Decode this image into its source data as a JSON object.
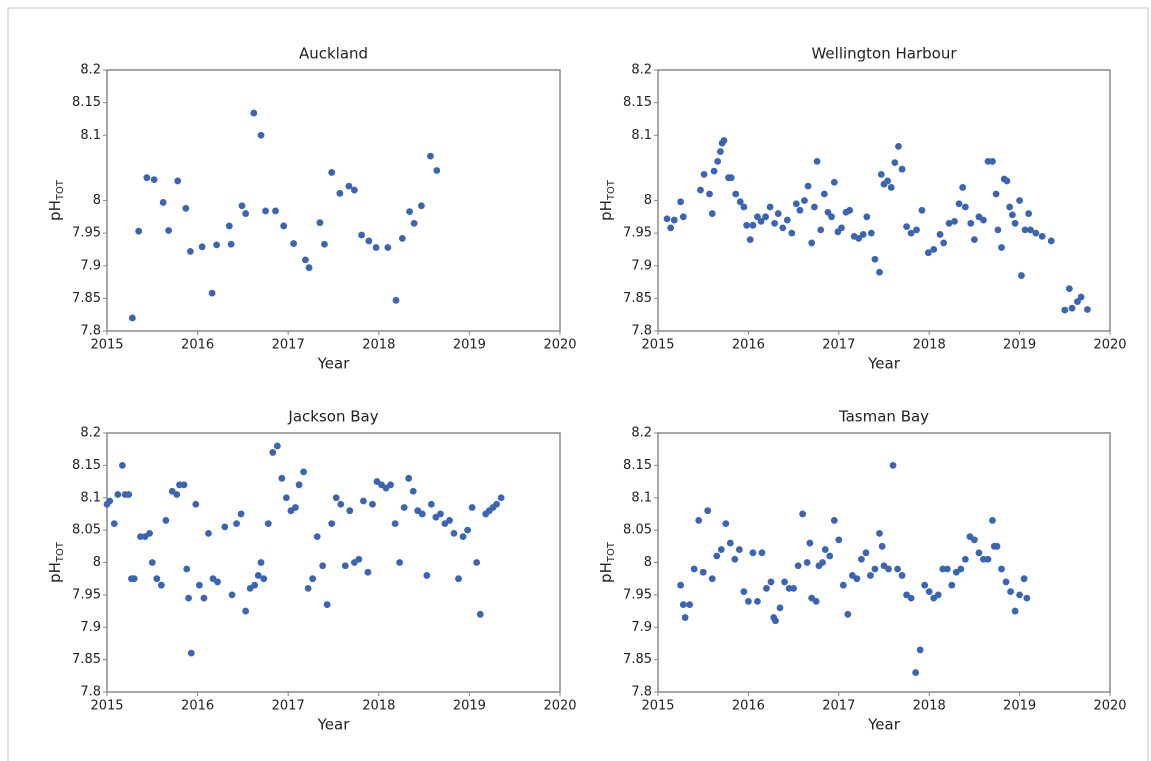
{
  "chart_data": [
    {
      "type": "scatter",
      "title": "Auckland",
      "x_label": "Year",
      "y_label": "pH",
      "y_label_sub": "TOT",
      "color": "#3a64b4",
      "xlim": [
        2015,
        2020
      ],
      "ylim": [
        7.8,
        8.2
      ],
      "xticks": [
        2015,
        2016,
        2017,
        2018,
        2019,
        2020
      ],
      "yticks": [
        8.2,
        8.15,
        8.1,
        8,
        7.95,
        7.9,
        7.85,
        7.8
      ],
      "x": [
        2015.28,
        2015.35,
        2015.44,
        2015.52,
        2015.62,
        2015.68,
        2015.78,
        2015.87,
        2015.92,
        2016.05,
        2016.16,
        2016.21,
        2016.35,
        2016.37,
        2016.49,
        2016.53,
        2016.62,
        2016.7,
        2016.75,
        2016.86,
        2016.95,
        2017.06,
        2017.19,
        2017.23,
        2017.35,
        2017.4,
        2017.48,
        2017.57,
        2017.67,
        2017.73,
        2017.81,
        2017.89,
        2017.97,
        2018.1,
        2018.19,
        2018.26,
        2018.34,
        2018.39,
        2018.47,
        2018.57,
        2018.64
      ],
      "values": [
        7.82,
        7.953,
        8.035,
        8.032,
        7.997,
        7.954,
        8.03,
        7.988,
        7.922,
        7.929,
        7.858,
        7.932,
        7.961,
        7.933,
        7.992,
        7.98,
        8.134,
        8.1,
        7.984,
        7.984,
        7.961,
        7.934,
        7.909,
        7.897,
        7.966,
        7.933,
        8.043,
        8.011,
        8.022,
        8.016,
        7.947,
        7.938,
        7.928,
        7.928,
        7.847,
        7.942,
        7.983,
        7.965,
        7.992,
        8.068,
        8.046
      ]
    },
    {
      "type": "scatter",
      "title": "Wellington Harbour",
      "x_label": "Year",
      "y_label": "pH",
      "y_label_sub": "TOT",
      "color": "#3a64b4",
      "xlim": [
        2015,
        2020
      ],
      "ylim": [
        7.8,
        8.2
      ],
      "xticks": [
        2015,
        2016,
        2017,
        2018,
        2019,
        2020
      ],
      "yticks": [
        8.2,
        8.15,
        8.1,
        8,
        7.95,
        7.9,
        7.85,
        7.8
      ],
      "x": [
        2015.1,
        2015.14,
        2015.18,
        2015.25,
        2015.28,
        2015.47,
        2015.51,
        2015.57,
        2015.6,
        2015.62,
        2015.66,
        2015.69,
        2015.71,
        2015.73,
        2015.78,
        2015.81,
        2015.86,
        2015.91,
        2015.95,
        2015.98,
        2016.02,
        2016.05,
        2016.1,
        2016.14,
        2016.19,
        2016.24,
        2016.29,
        2016.33,
        2016.38,
        2016.43,
        2016.48,
        2016.53,
        2016.57,
        2016.62,
        2016.66,
        2016.7,
        2016.73,
        2016.76,
        2016.8,
        2016.84,
        2016.88,
        2016.92,
        2016.95,
        2016.99,
        2017.03,
        2017.08,
        2017.12,
        2017.17,
        2017.22,
        2017.27,
        2017.31,
        2017.36,
        2017.4,
        2017.45,
        2017.47,
        2017.5,
        2017.54,
        2017.58,
        2017.62,
        2017.66,
        2017.7,
        2017.75,
        2017.8,
        2017.86,
        2017.92,
        2017.99,
        2018.05,
        2018.12,
        2018.16,
        2018.22,
        2018.28,
        2018.33,
        2018.37,
        2018.4,
        2018.46,
        2018.5,
        2018.55,
        2018.6,
        2018.65,
        2018.7,
        2018.74,
        2018.76,
        2018.8,
        2018.83,
        2018.86,
        2018.89,
        2018.92,
        2018.95,
        2019.0,
        2019.02,
        2019.06,
        2019.1,
        2019.12,
        2019.18,
        2019.25,
        2019.35,
        2019.5,
        2019.55,
        2019.58,
        2019.64,
        2019.68,
        2019.75
      ],
      "values": [
        7.972,
        7.958,
        7.97,
        7.998,
        7.975,
        8.016,
        8.04,
        8.01,
        7.98,
        8.045,
        8.06,
        8.075,
        8.088,
        8.092,
        8.035,
        8.035,
        8.01,
        7.998,
        7.99,
        7.962,
        7.94,
        7.962,
        7.975,
        7.968,
        7.975,
        7.99,
        7.965,
        7.98,
        7.958,
        7.97,
        7.95,
        7.995,
        7.985,
        8.0,
        8.022,
        7.935,
        7.99,
        8.06,
        7.955,
        8.01,
        7.982,
        7.975,
        8.028,
        7.952,
        7.958,
        7.982,
        7.985,
        7.945,
        7.942,
        7.948,
        7.975,
        7.95,
        7.91,
        7.89,
        8.04,
        8.025,
        8.03,
        8.02,
        8.058,
        8.083,
        8.048,
        7.96,
        7.95,
        7.955,
        7.985,
        7.92,
        7.925,
        7.948,
        7.935,
        7.965,
        7.968,
        7.995,
        8.02,
        7.99,
        7.965,
        7.94,
        7.975,
        7.97,
        8.06,
        8.06,
        8.01,
        7.955,
        7.928,
        8.033,
        8.03,
        7.99,
        7.978,
        7.965,
        8.0,
        7.885,
        7.955,
        7.98,
        7.955,
        7.95,
        7.945,
        7.938,
        7.832,
        7.865,
        7.835,
        7.845,
        7.852,
        7.833
      ]
    },
    {
      "type": "scatter",
      "title": "Jackson Bay",
      "x_label": "Year",
      "y_label": "pH",
      "y_label_sub": "TOT",
      "color": "#3a64b4",
      "xlim": [
        2015,
        2020
      ],
      "ylim": [
        7.8,
        8.2
      ],
      "xticks": [
        2015,
        2016,
        2017,
        2018,
        2019,
        2020
      ],
      "yticks": [
        8.2,
        8.15,
        8.1,
        8.05,
        8,
        7.95,
        7.9,
        7.85,
        7.8
      ],
      "x": [
        2015.0,
        2015.03,
        2015.08,
        2015.12,
        2015.17,
        2015.2,
        2015.24,
        2015.27,
        2015.3,
        2015.37,
        2015.42,
        2015.47,
        2015.5,
        2015.55,
        2015.6,
        2015.65,
        2015.72,
        2015.77,
        2015.8,
        2015.85,
        2015.88,
        2015.9,
        2015.93,
        2015.98,
        2016.02,
        2016.07,
        2016.12,
        2016.17,
        2016.22,
        2016.3,
        2016.38,
        2016.43,
        2016.48,
        2016.53,
        2016.58,
        2016.63,
        2016.67,
        2016.7,
        2016.73,
        2016.78,
        2016.83,
        2016.88,
        2016.93,
        2016.98,
        2017.03,
        2017.08,
        2017.12,
        2017.17,
        2017.22,
        2017.27,
        2017.32,
        2017.38,
        2017.43,
        2017.48,
        2017.53,
        2017.58,
        2017.63,
        2017.68,
        2017.73,
        2017.78,
        2017.83,
        2017.88,
        2017.93,
        2017.98,
        2018.03,
        2018.08,
        2018.13,
        2018.18,
        2018.23,
        2018.28,
        2018.33,
        2018.38,
        2018.43,
        2018.48,
        2018.53,
        2018.58,
        2018.63,
        2018.68,
        2018.73,
        2018.78,
        2018.83,
        2018.88,
        2018.93,
        2018.98,
        2019.03,
        2019.08,
        2019.12,
        2019.18,
        2019.22,
        2019.26,
        2019.3,
        2019.35
      ],
      "values": [
        8.09,
        8.095,
        8.06,
        8.105,
        8.15,
        8.105,
        8.105,
        7.975,
        7.975,
        8.04,
        8.04,
        8.045,
        8.0,
        7.975,
        7.965,
        8.065,
        8.11,
        8.105,
        8.12,
        8.12,
        7.99,
        7.945,
        7.86,
        8.09,
        7.965,
        7.945,
        8.045,
        7.975,
        7.97,
        8.055,
        7.95,
        8.06,
        8.075,
        7.925,
        7.96,
        7.965,
        7.98,
        8.0,
        7.975,
        8.06,
        8.17,
        8.18,
        8.13,
        8.1,
        8.08,
        8.085,
        8.12,
        8.14,
        7.96,
        7.975,
        8.04,
        7.995,
        7.935,
        8.06,
        8.1,
        8.09,
        7.995,
        8.08,
        8.0,
        8.005,
        8.095,
        7.985,
        8.09,
        8.125,
        8.12,
        8.115,
        8.12,
        8.06,
        8.0,
        8.085,
        8.13,
        8.11,
        8.08,
        8.075,
        7.98,
        8.09,
        8.07,
        8.075,
        8.06,
        8.065,
        8.045,
        7.975,
        8.04,
        8.05,
        8.085,
        8.0,
        7.92,
        8.075,
        8.08,
        8.085,
        8.09,
        8.1
      ]
    },
    {
      "type": "scatter",
      "title": "Tasman Bay",
      "x_label": "Year",
      "y_label": "pH",
      "y_label_sub": "TOT",
      "color": "#3a64b4",
      "xlim": [
        2015,
        2020
      ],
      "ylim": [
        7.8,
        8.2
      ],
      "xticks": [
        2015,
        2016,
        2017,
        2018,
        2019,
        2020
      ],
      "yticks": [
        8.2,
        8.15,
        8.1,
        8.05,
        8,
        7.95,
        7.9,
        7.85,
        7.8
      ],
      "x": [
        2015.25,
        2015.28,
        2015.3,
        2015.35,
        2015.4,
        2015.45,
        2015.5,
        2015.55,
        2015.6,
        2015.65,
        2015.7,
        2015.75,
        2015.8,
        2015.85,
        2015.9,
        2015.95,
        2016.0,
        2016.05,
        2016.1,
        2016.15,
        2016.2,
        2016.25,
        2016.28,
        2016.3,
        2016.35,
        2016.4,
        2016.45,
        2016.5,
        2016.55,
        2016.6,
        2016.65,
        2016.68,
        2016.7,
        2016.75,
        2016.78,
        2016.82,
        2016.85,
        2016.9,
        2016.95,
        2017.0,
        2017.05,
        2017.1,
        2017.15,
        2017.2,
        2017.25,
        2017.3,
        2017.35,
        2017.4,
        2017.45,
        2017.48,
        2017.5,
        2017.55,
        2017.6,
        2017.65,
        2017.7,
        2017.75,
        2017.8,
        2017.85,
        2017.9,
        2017.95,
        2018.0,
        2018.05,
        2018.1,
        2018.15,
        2018.2,
        2018.25,
        2018.3,
        2018.35,
        2018.4,
        2018.45,
        2018.5,
        2018.55,
        2018.6,
        2018.65,
        2018.7,
        2018.72,
        2018.75,
        2018.8,
        2018.85,
        2018.9,
        2018.95,
        2019.0,
        2019.05,
        2019.08
      ],
      "values": [
        7.965,
        7.935,
        7.915,
        7.935,
        7.99,
        8.065,
        7.985,
        8.08,
        7.975,
        8.01,
        8.02,
        8.06,
        8.03,
        8.005,
        8.02,
        7.955,
        7.94,
        8.015,
        7.94,
        8.015,
        7.96,
        7.97,
        7.915,
        7.91,
        7.93,
        7.97,
        7.96,
        7.96,
        7.995,
        8.075,
        8.0,
        8.03,
        7.945,
        7.94,
        7.995,
        8.0,
        8.02,
        8.01,
        8.065,
        8.035,
        7.965,
        7.92,
        7.98,
        7.975,
        8.005,
        8.015,
        7.98,
        7.99,
        8.045,
        8.025,
        7.995,
        7.99,
        8.15,
        7.99,
        7.98,
        7.95,
        7.945,
        7.83,
        7.865,
        7.965,
        7.955,
        7.945,
        7.95,
        7.99,
        7.99,
        7.965,
        7.985,
        7.99,
        8.005,
        8.04,
        8.035,
        8.015,
        8.005,
        8.005,
        8.065,
        8.025,
        8.025,
        7.99,
        7.97,
        7.955,
        7.925,
        7.95,
        7.975,
        7.945
      ]
    }
  ]
}
